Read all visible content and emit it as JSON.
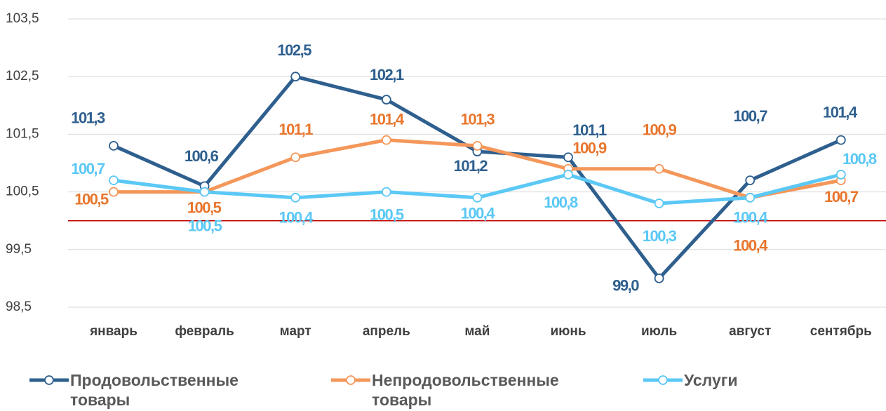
{
  "chart_data": {
    "type": "line",
    "categories": [
      "январь",
      "февраль",
      "март",
      "апрель",
      "май",
      "июнь",
      "июль",
      "август",
      "сентябрь"
    ],
    "series": [
      {
        "name": "Продовольственные товары",
        "color": "#2e5f8e",
        "label_color": "#2e5f8e",
        "values": [
          101.3,
          100.6,
          102.5,
          102.1,
          101.2,
          101.1,
          99.0,
          100.7,
          101.4
        ],
        "value_labels": [
          "101,3",
          "100,6",
          "102,5",
          "102,1",
          "101,2",
          "101,1",
          "99,0",
          "100,7",
          "101,4"
        ]
      },
      {
        "name": "Непродовольственные товары",
        "color": "#f4975a",
        "label_color": "#e8762d",
        "values": [
          100.5,
          100.5,
          101.1,
          101.4,
          101.3,
          100.9,
          100.9,
          100.4,
          100.7
        ],
        "value_labels": [
          "100,5",
          "100,5",
          "101,1",
          "101,4",
          "101,3",
          "100,9",
          "100,9",
          "100,4",
          "100,7"
        ]
      },
      {
        "name": "Услуги",
        "color": "#5bc8f5",
        "label_color": "#5bc8f5",
        "values": [
          100.7,
          100.5,
          100.4,
          100.5,
          100.4,
          100.8,
          100.3,
          100.4,
          100.8
        ],
        "value_labels": [
          "100,7",
          "100,5",
          "100,4",
          "100,5",
          "100,4",
          "100,8",
          "100,3",
          "100,4",
          "100,8"
        ]
      }
    ],
    "ylim": [
      98.5,
      103.5
    ],
    "yticks": [
      {
        "value": 98.5,
        "label": "98,5"
      },
      {
        "value": 99.5,
        "label": "99,5"
      },
      {
        "value": 100.5,
        "label": "100,5"
      },
      {
        "value": 101.5,
        "label": "101,5"
      },
      {
        "value": 102.5,
        "label": "102,5"
      },
      {
        "value": 103.5,
        "label": "103,5"
      }
    ],
    "grid": true,
    "reference_line": {
      "value": 100,
      "color": "#c00000"
    },
    "legend": "bottom"
  }
}
